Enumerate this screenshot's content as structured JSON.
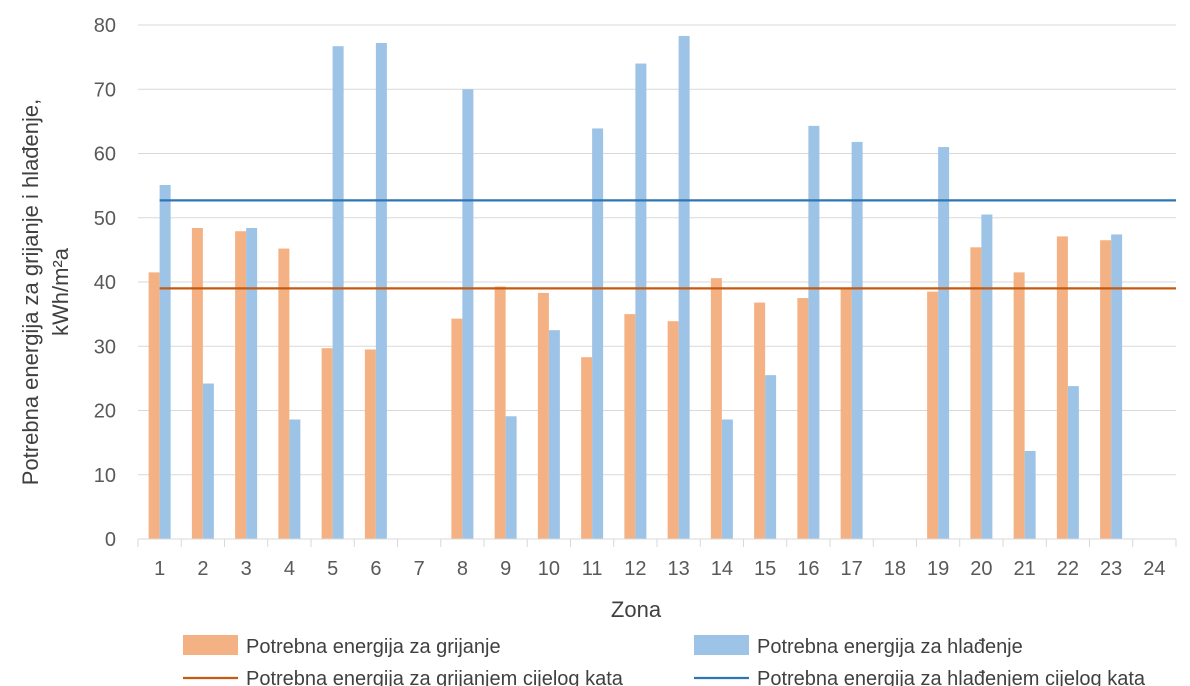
{
  "chart_data": {
    "type": "bar",
    "title": "",
    "xlabel": "Zona",
    "ylabel_line1": "Potrebna energija za grijanje i hlađenje,",
    "ylabel_line2": "kWh/m²a",
    "ylim": [
      0,
      80
    ],
    "ytick_step": 10,
    "grid": true,
    "legend_position": "bottom",
    "categories": [
      "1",
      "2",
      "3",
      "4",
      "5",
      "6",
      "7",
      "8",
      "9",
      "10",
      "11",
      "12",
      "13",
      "14",
      "15",
      "16",
      "17",
      "18",
      "19",
      "20",
      "21",
      "22",
      "23",
      "24"
    ],
    "series": [
      {
        "name": "Potrebna energija za grijanje",
        "kind": "bar",
        "color": "#F4B183",
        "values": [
          41.5,
          48.4,
          47.9,
          45.2,
          29.7,
          29.5,
          null,
          34.3,
          39.3,
          38.3,
          28.3,
          35.0,
          33.9,
          40.6,
          36.8,
          37.5,
          39.1,
          null,
          38.5,
          45.4,
          41.5,
          47.1,
          46.5,
          null
        ]
      },
      {
        "name": "Potrebna energija za hlađenje",
        "kind": "bar",
        "color": "#9DC3E6",
        "values": [
          55.1,
          24.2,
          48.4,
          18.6,
          76.7,
          77.2,
          null,
          70.0,
          19.1,
          32.5,
          63.9,
          74.0,
          78.3,
          18.6,
          25.5,
          64.3,
          61.8,
          null,
          61.0,
          50.5,
          13.7,
          23.8,
          47.4,
          null
        ]
      },
      {
        "name": "Potrebna energija za grijanjem cijelog kata",
        "kind": "line",
        "color": "#C55A11",
        "value": 39.0
      },
      {
        "name": "Potrebna energija za hlađenjem cijelog kata",
        "kind": "line",
        "color": "#2E75B6",
        "value": 52.7
      }
    ]
  }
}
